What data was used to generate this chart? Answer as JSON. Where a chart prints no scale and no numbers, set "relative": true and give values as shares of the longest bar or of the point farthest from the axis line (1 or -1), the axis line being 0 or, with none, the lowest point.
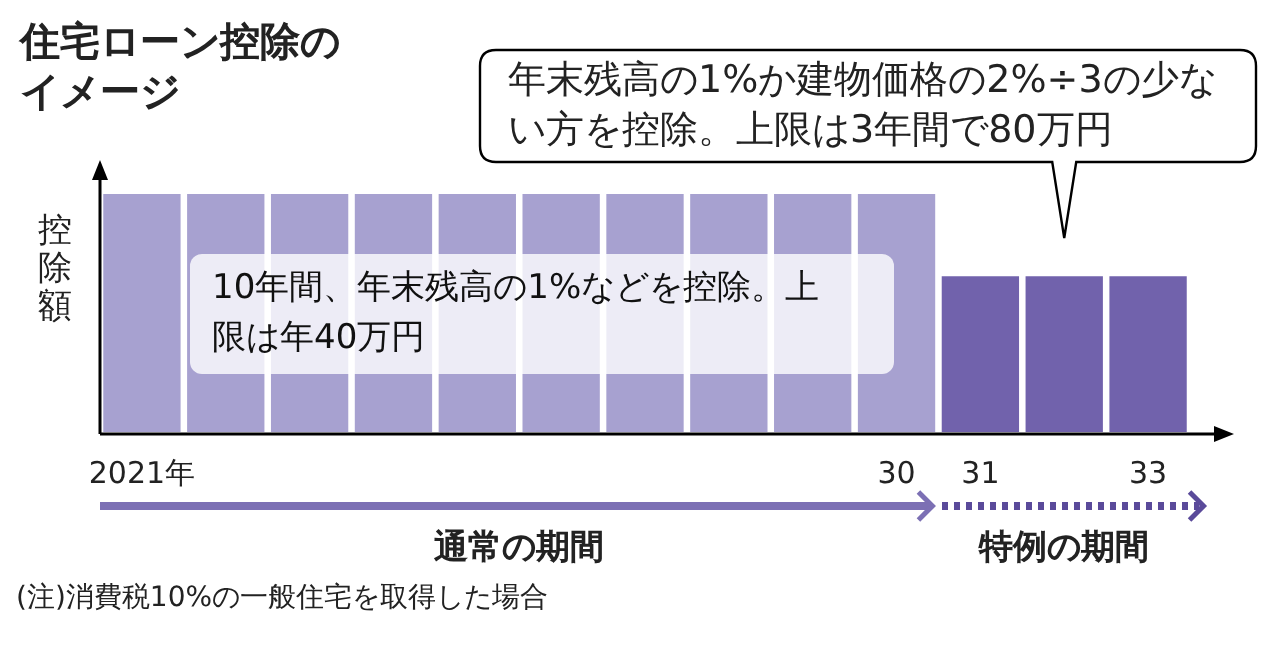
{
  "chart_data": {
    "type": "bar",
    "relative": true,
    "title": "住宅ローン控除のイメージ",
    "ylabel": "控除額",
    "categories": [
      "2021年",
      null,
      null,
      null,
      null,
      null,
      null,
      null,
      null,
      "30",
      "31",
      null,
      "33"
    ],
    "values": [
      1,
      1,
      1,
      1,
      1,
      1,
      1,
      1,
      1,
      1,
      0.66,
      0.66,
      0.66
    ],
    "colors": [
      "#a7a1d0",
      "#a7a1d0",
      "#a7a1d0",
      "#a7a1d0",
      "#a7a1d0",
      "#a7a1d0",
      "#a7a1d0",
      "#a7a1d0",
      "#a7a1d0",
      "#a7a1d0",
      "#7162ac",
      "#7162ac",
      "#7162ac"
    ],
    "annotations": [
      "年末残高の1%か建物価格の2%÷3の少ない方を控除。上限は3年間で80万円",
      "10年間、年末残高の1%などを控除。上限は年40万円",
      "通常の期間",
      "特例の期間",
      "(注)消費税10%の一般住宅を取得した場合"
    ]
  }
}
